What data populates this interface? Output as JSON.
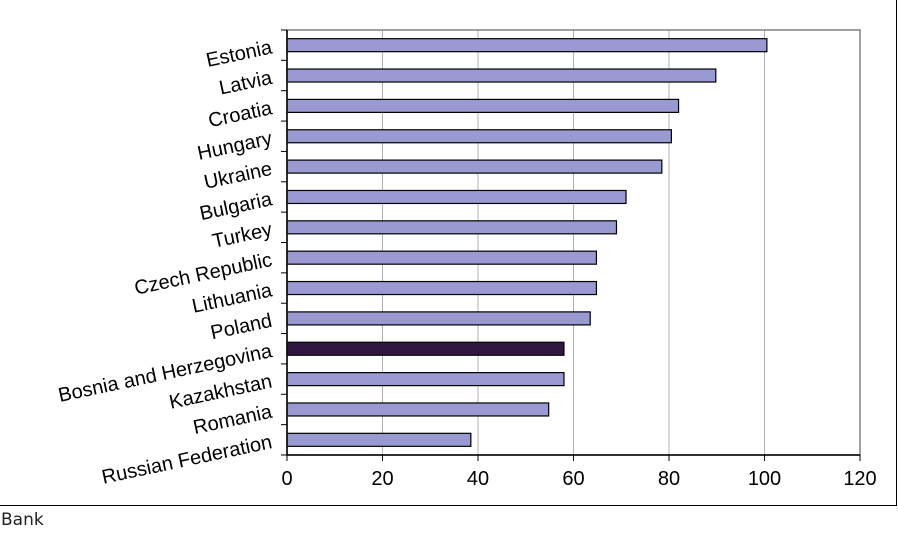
{
  "chart_data": {
    "type": "bar",
    "orientation": "horizontal",
    "categories": [
      "Estonia",
      "Latvia",
      "Croatia",
      "Hungary",
      "Ukraine",
      "Bulgaria",
      "Turkey",
      "Czech Republic",
      "Lithuania",
      "Poland",
      "Bosnia and Herzegovina",
      "Kazakhstan",
      "Romania",
      "Russian Federation"
    ],
    "values": [
      100.5,
      89.8,
      82.0,
      80.5,
      78.5,
      71.0,
      69.0,
      64.8,
      64.8,
      63.5,
      58.0,
      58.0,
      54.8,
      38.5
    ],
    "highlight_category": "Bosnia and Herzegovina",
    "xlim": [
      0,
      120
    ],
    "xticks": [
      0,
      20,
      40,
      60,
      80,
      100,
      120
    ],
    "grid": "vertical",
    "colors": {
      "bar": "#9A9AD2",
      "highlight": "#2E1840",
      "bar_edge": "#000000",
      "grid": "#B0B0B0",
      "axis": "#808080"
    }
  },
  "footer": {
    "caption": "Bank"
  }
}
